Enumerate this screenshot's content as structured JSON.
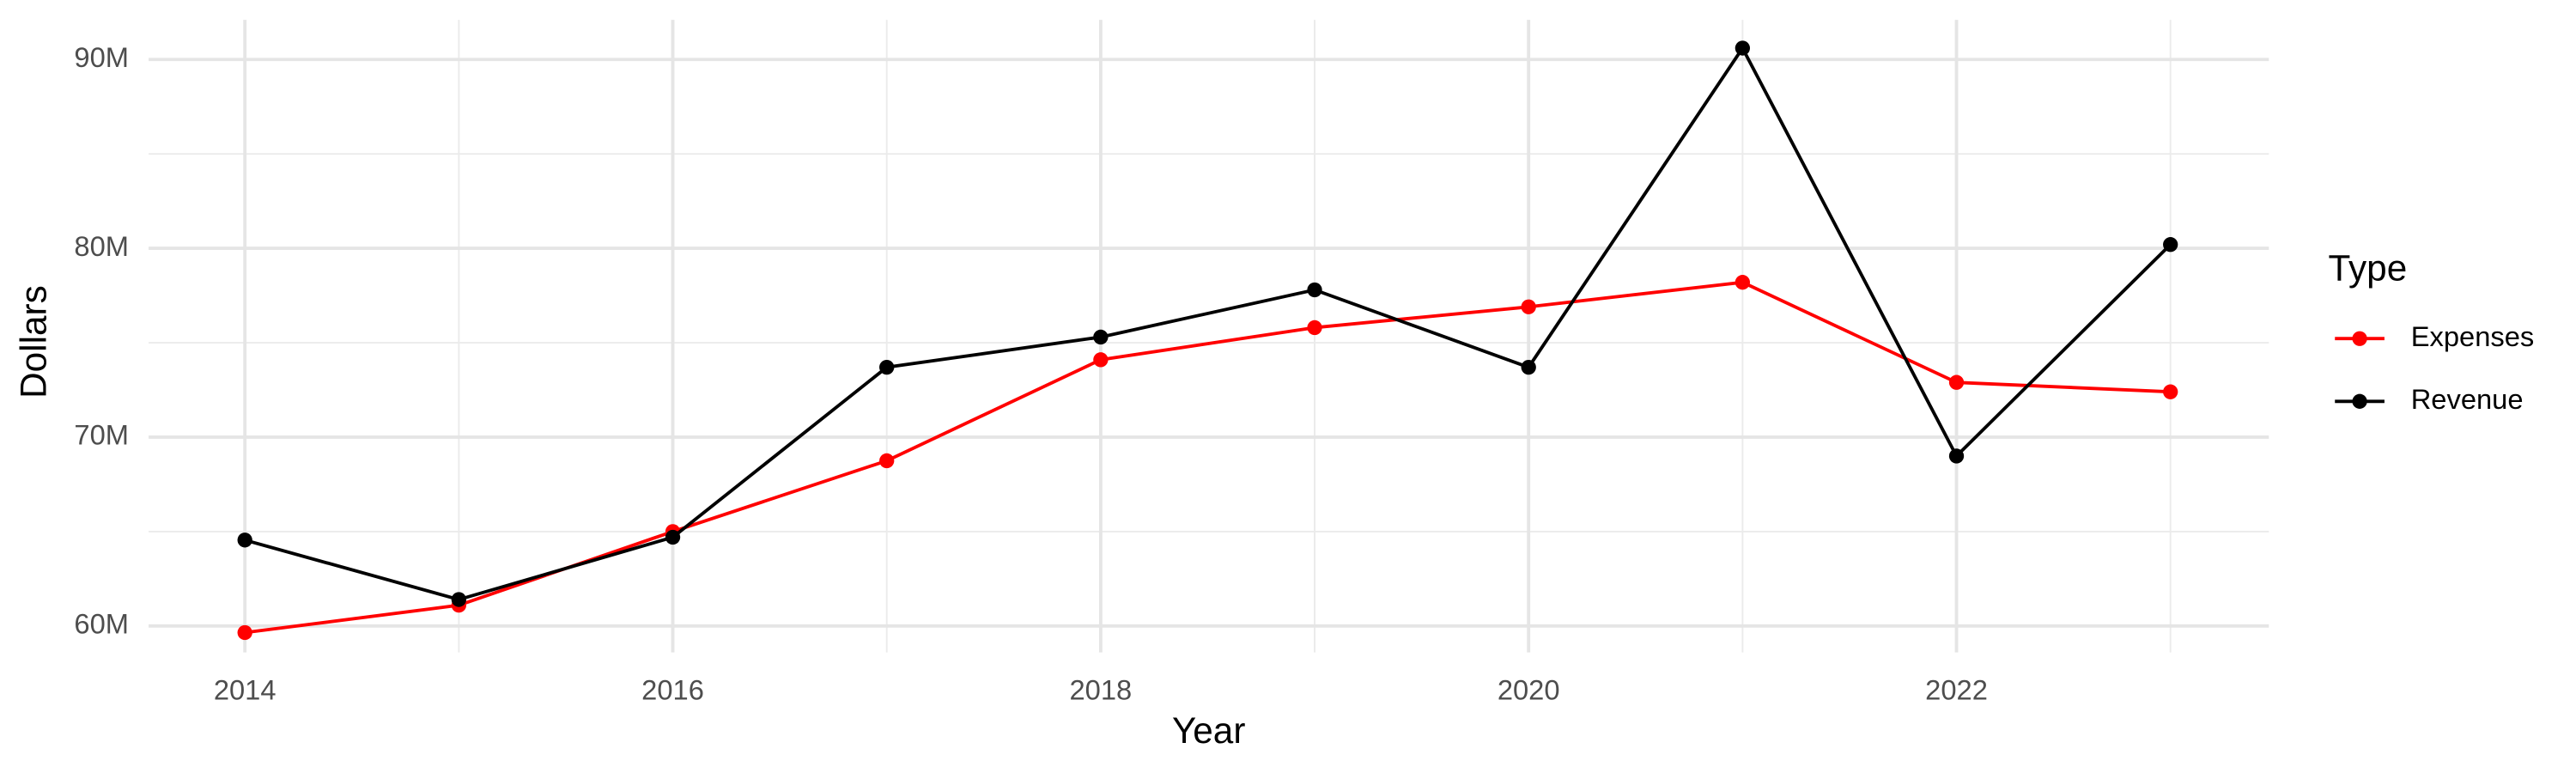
{
  "chart_data": {
    "type": "line",
    "x_label": "Year",
    "y_label": "Dollars",
    "legend_title": "Type",
    "legend_position": "right",
    "grid": true,
    "x": [
      2014,
      2015,
      2016,
      2017,
      2018,
      2019,
      2020,
      2021,
      2022,
      2023
    ],
    "series": [
      {
        "name": "Expenses",
        "color": "#ff0000",
        "values": [
          59650000,
          61100000,
          65000000,
          68750000,
          74100000,
          75800000,
          76900000,
          78200000,
          72900000,
          72400000
        ]
      },
      {
        "name": "Revenue",
        "color": "#000000",
        "values": [
          64550000,
          61400000,
          64700000,
          73700000,
          75300000,
          77800000,
          73700000,
          90600000,
          69000000,
          80200000
        ]
      }
    ],
    "xlim": [
      2013.55,
      2023.46
    ],
    "xticks": [
      2014,
      2016,
      2018,
      2020,
      2022
    ],
    "ylim": [
      58600000,
      92100000
    ],
    "yticks": [
      {
        "value": 60000000,
        "label": "60M"
      },
      {
        "value": 70000000,
        "label": "70M"
      },
      {
        "value": 80000000,
        "label": "80M"
      },
      {
        "value": 90000000,
        "label": "90M"
      }
    ]
  }
}
